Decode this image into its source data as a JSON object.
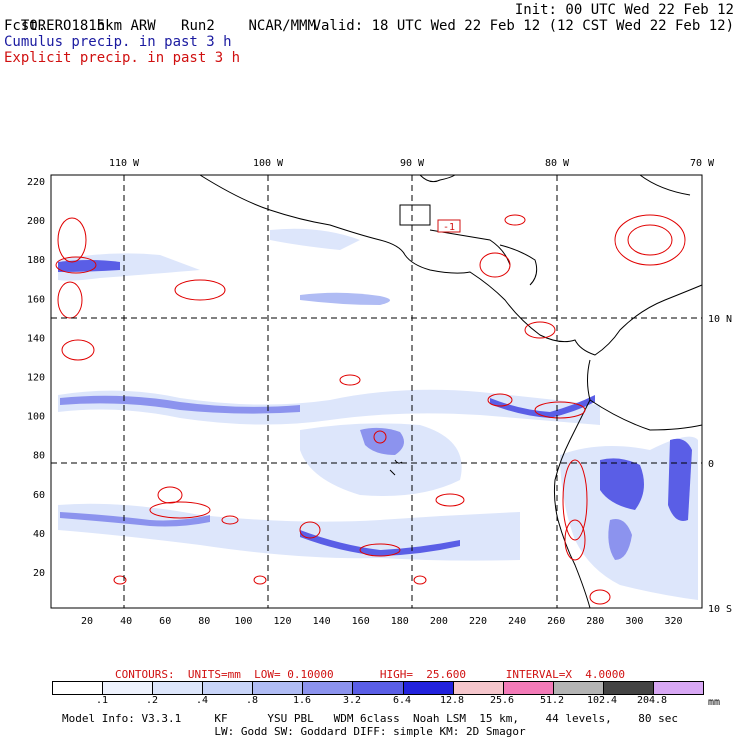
{
  "header": {
    "model": "TORERO",
    "resolution": "15km ARW",
    "run": "Run2",
    "org": "NCAR/MMM",
    "fcst_label": "Fcst.",
    "fcst_hours": "18 h",
    "init": "Init: 00 UTC Wed 22 Feb 12",
    "valid": "Valid: 18 UTC Wed 22 Feb 12 (12 CST Wed 22 Feb 12)",
    "line_blue": "Cumulus precip. in past 3 h",
    "line_red": "Explicit precip. in past 3 h"
  },
  "map": {
    "top_lon_labels": [
      "110 W",
      "100 W",
      "90 W",
      "80 W",
      "70 W"
    ],
    "right_lat_labels": [
      "10 N",
      "0",
      "10 S"
    ],
    "left_grid_labels": [
      "220",
      "200",
      "180",
      "160",
      "140",
      "120",
      "100",
      "80",
      "60",
      "40",
      "20"
    ],
    "bottom_grid_labels": [
      "20",
      "40",
      "60",
      "80",
      "100",
      "120",
      "140",
      "160",
      "180",
      "200",
      "220",
      "240",
      "260",
      "280",
      "300",
      "320"
    ],
    "box_label": "-1",
    "colors": {
      "coast": "#000000",
      "contour": "#e00000",
      "precip_light": "#dde6fb",
      "precip_mid": "#8c93ee",
      "precip_heavy": "#2222dd"
    }
  },
  "contours": {
    "text": "CONTOURS:  UNITS=mm  LOW= 0.10000       HIGH=  25.600      INTERVAL=X  4.0000"
  },
  "legend": {
    "labels": [
      ".1",
      ".2",
      ".4",
      ".8",
      "1.6",
      "3.2",
      "6.4",
      "12.8",
      "25.6",
      "51.2",
      "102.4",
      "204.8"
    ],
    "unit": "mm",
    "colors": [
      "#ffffff",
      "#eef2fd",
      "#dde6fb",
      "#c8d4f8",
      "#b0bcf4",
      "#8c93ee",
      "#5a5ee6",
      "#2222dd",
      "#f5c6cc",
      "#f37bb8",
      "#b4b4b4",
      "#444444",
      "#d8a8f4"
    ]
  },
  "footer": {
    "line1": "Model Info: V3.3.1     KF      YSU PBL   WDM 6class  Noah LSM  15 km,    44 levels,    80 sec",
    "line2": "LW: Godd SW: Goddard DIFF: simple KM: 2D Smagor"
  }
}
